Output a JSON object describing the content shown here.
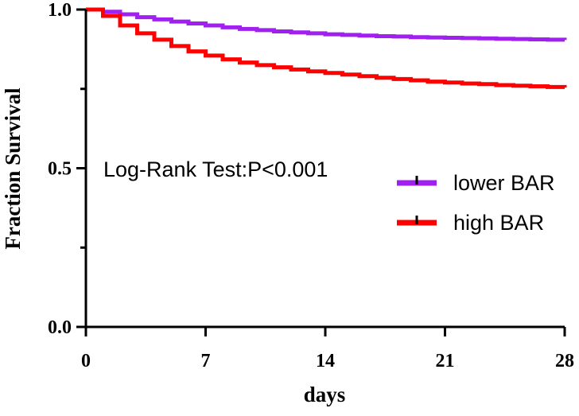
{
  "chart_data": {
    "type": "line",
    "subtype": "step",
    "title": "",
    "xlabel": "days",
    "ylabel": "Fraction Survival",
    "xlim": [
      0,
      28
    ],
    "ylim": [
      0,
      1
    ],
    "x_ticks": [
      0,
      7,
      14,
      21,
      28
    ],
    "x_tick_labels": [
      "0",
      "7",
      "14",
      "21",
      "28"
    ],
    "y_ticks": [
      0,
      0.5,
      1
    ],
    "y_tick_labels": [
      "0.0",
      "0.5",
      "1.0"
    ],
    "grid": false,
    "legend_position": "right",
    "annotation": "Log-Rank Test:P<0.001",
    "series": [
      {
        "name": "lower BAR",
        "color": "#a020f0",
        "x": [
          0,
          1,
          2,
          3,
          4,
          5,
          6,
          7,
          8,
          9,
          10,
          11,
          12,
          13,
          14,
          15,
          16,
          17,
          18,
          19,
          20,
          21,
          22,
          23,
          24,
          25,
          26,
          27,
          28
        ],
        "y": [
          1.0,
          0.993,
          0.985,
          0.976,
          0.969,
          0.962,
          0.956,
          0.95,
          0.944,
          0.939,
          0.935,
          0.931,
          0.928,
          0.925,
          0.922,
          0.92,
          0.918,
          0.916,
          0.915,
          0.913,
          0.912,
          0.911,
          0.91,
          0.909,
          0.908,
          0.907,
          0.906,
          0.905,
          0.904
        ]
      },
      {
        "name": "high BAR",
        "color": "#ff0000",
        "x": [
          0,
          1,
          2,
          3,
          4,
          5,
          6,
          7,
          8,
          9,
          10,
          11,
          12,
          13,
          14,
          15,
          16,
          17,
          18,
          19,
          20,
          21,
          22,
          23,
          24,
          25,
          26,
          27,
          28
        ],
        "y": [
          1.0,
          0.98,
          0.95,
          0.925,
          0.905,
          0.885,
          0.868,
          0.855,
          0.843,
          0.833,
          0.825,
          0.818,
          0.811,
          0.805,
          0.8,
          0.795,
          0.79,
          0.785,
          0.781,
          0.777,
          0.773,
          0.77,
          0.767,
          0.765,
          0.762,
          0.76,
          0.758,
          0.756,
          0.754
        ]
      }
    ]
  }
}
